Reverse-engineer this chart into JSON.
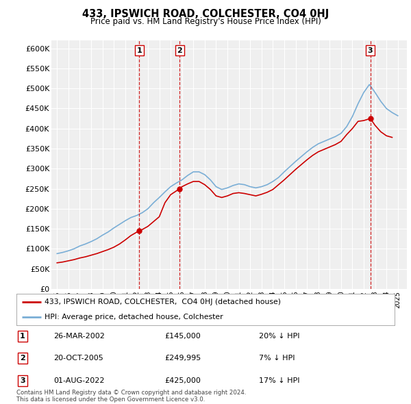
{
  "title": "433, IPSWICH ROAD, COLCHESTER, CO4 0HJ",
  "subtitle": "Price paid vs. HM Land Registry's House Price Index (HPI)",
  "legend_label_red": "433, IPSWICH ROAD, COLCHESTER,  CO4 0HJ (detached house)",
  "legend_label_blue": "HPI: Average price, detached house, Colchester",
  "footer": "Contains HM Land Registry data © Crown copyright and database right 2024.\nThis data is licensed under the Open Government Licence v3.0.",
  "sales": [
    {
      "num": 1,
      "date": "26-MAR-2002",
      "price": "£145,000",
      "pct": "20% ↓ HPI",
      "year": 2002.23,
      "price_val": 145000
    },
    {
      "num": 2,
      "date": "20-OCT-2005",
      "price": "£249,995",
      "pct": "7% ↓ HPI",
      "year": 2005.8,
      "price_val": 249995
    },
    {
      "num": 3,
      "date": "01-AUG-2022",
      "price": "£425,000",
      "pct": "17% ↓ HPI",
      "year": 2022.58,
      "price_val": 425000
    }
  ],
  "ylim": [
    0,
    620000
  ],
  "yticks": [
    0,
    50000,
    100000,
    150000,
    200000,
    250000,
    300000,
    350000,
    400000,
    450000,
    500000,
    550000,
    600000
  ],
  "ytick_labels": [
    "£0",
    "£50K",
    "£100K",
    "£150K",
    "£200K",
    "£250K",
    "£300K",
    "£350K",
    "£400K",
    "£450K",
    "£500K",
    "£550K",
    "£600K"
  ],
  "xlim": [
    1994.5,
    2025.8
  ],
  "bg_color": "#ffffff",
  "plot_bg_color": "#efefef",
  "grid_color": "#ffffff",
  "red_color": "#cc0000",
  "blue_color": "#7aaed6",
  "dashed_color": "#cc0000",
  "years_hpi": [
    1995,
    1995.5,
    1996,
    1996.5,
    1997,
    1997.5,
    1998,
    1998.5,
    1999,
    1999.5,
    2000,
    2000.5,
    2001,
    2001.5,
    2002,
    2002.5,
    2003,
    2003.5,
    2004,
    2004.5,
    2005,
    2005.5,
    2006,
    2006.5,
    2007,
    2007.5,
    2008,
    2008.5,
    2009,
    2009.5,
    2010,
    2010.5,
    2011,
    2011.5,
    2012,
    2012.5,
    2013,
    2013.5,
    2014,
    2014.5,
    2015,
    2015.5,
    2016,
    2016.5,
    2017,
    2017.5,
    2018,
    2018.5,
    2019,
    2019.5,
    2020,
    2020.5,
    2021,
    2021.5,
    2022,
    2022.5,
    2023,
    2023.5,
    2024,
    2024.5,
    2025
  ],
  "hpi_values": [
    88000,
    91000,
    95000,
    100000,
    107000,
    112000,
    118000,
    125000,
    134000,
    142000,
    152000,
    161000,
    170000,
    178000,
    183000,
    190000,
    200000,
    215000,
    228000,
    242000,
    255000,
    264000,
    272000,
    283000,
    292000,
    292000,
    285000,
    272000,
    255000,
    248000,
    252000,
    258000,
    262000,
    260000,
    255000,
    252000,
    255000,
    260000,
    268000,
    278000,
    292000,
    305000,
    318000,
    330000,
    342000,
    353000,
    362000,
    368000,
    374000,
    380000,
    388000,
    405000,
    430000,
    462000,
    490000,
    510000,
    490000,
    468000,
    450000,
    440000,
    432000
  ],
  "years_red": [
    1995,
    1995.5,
    1996,
    1996.5,
    1997,
    1997.5,
    1998,
    1998.5,
    1999,
    1999.5,
    2000,
    2000.5,
    2001,
    2001.5,
    2002.23,
    2002.5,
    2003,
    2003.5,
    2004,
    2004.5,
    2005,
    2005.8,
    2006,
    2006.5,
    2007,
    2007.5,
    2008,
    2008.5,
    2009,
    2009.5,
    2010,
    2010.5,
    2011,
    2011.5,
    2012,
    2012.5,
    2013,
    2013.5,
    2014,
    2014.5,
    2015,
    2015.5,
    2016,
    2016.5,
    2017,
    2017.5,
    2018,
    2018.5,
    2019,
    2019.5,
    2020,
    2020.5,
    2021,
    2021.5,
    2022,
    2022.58,
    2023,
    2023.5,
    2024,
    2024.5
  ],
  "red_values": [
    65000,
    67000,
    70000,
    73000,
    77000,
    80000,
    84000,
    88000,
    93000,
    98000,
    104000,
    112000,
    122000,
    133000,
    145000,
    148000,
    156000,
    168000,
    180000,
    215000,
    235000,
    249995,
    255000,
    262000,
    268000,
    268000,
    260000,
    248000,
    232000,
    228000,
    232000,
    238000,
    240000,
    238000,
    235000,
    232000,
    236000,
    241000,
    248000,
    260000,
    272000,
    285000,
    298000,
    310000,
    322000,
    333000,
    342000,
    348000,
    354000,
    360000,
    368000,
    385000,
    400000,
    418000,
    420000,
    425000,
    408000,
    392000,
    382000,
    378000
  ]
}
